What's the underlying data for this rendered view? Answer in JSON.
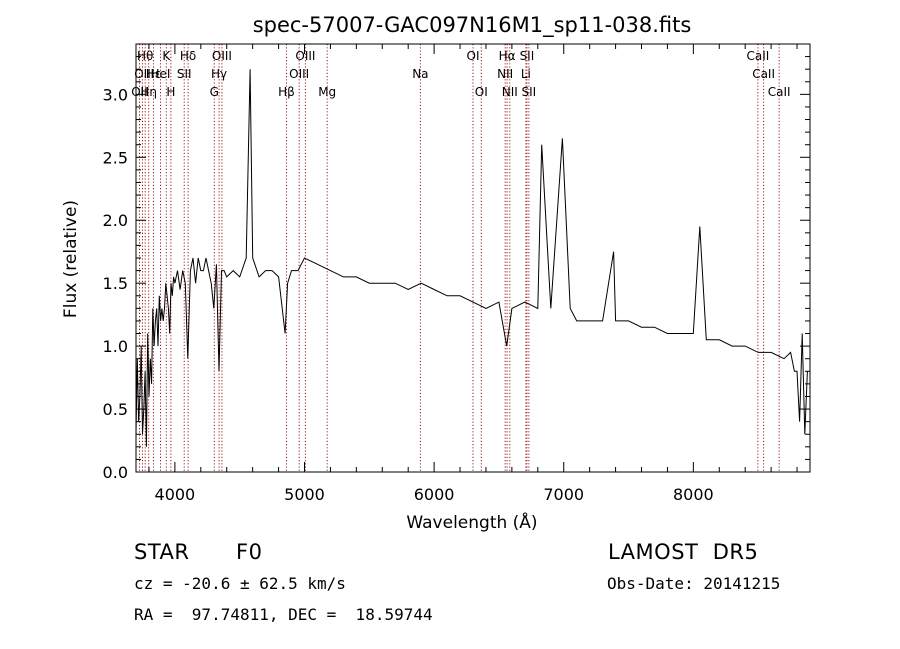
{
  "colors": {
    "spectrum": "#000000",
    "line_marker": "#a01818",
    "axes": "#000000",
    "background": "#ffffff"
  },
  "chart_data": {
    "type": "line",
    "title": "spec-57007-GAC097N16M1_sp11-038.fits",
    "xlabel": "Wavelength (Å)",
    "ylabel": "Flux (relative)",
    "xlim": [
      3700,
      8900
    ],
    "ylim": [
      0.0,
      3.4
    ],
    "x_ticks": [
      4000,
      5000,
      6000,
      7000,
      8000
    ],
    "y_ticks": [
      "0.0",
      "0.5",
      "1.0",
      "1.5",
      "2.0",
      "2.5",
      "3.0"
    ],
    "grid": false,
    "legend": "none",
    "series": [
      {
        "x": [
          3700,
          3710,
          3720,
          3730,
          3740,
          3750,
          3760,
          3770,
          3780,
          3790,
          3800,
          3810,
          3820,
          3830,
          3840,
          3850,
          3860,
          3870,
          3880,
          3890,
          3900,
          3910,
          3920,
          3930,
          3940,
          3950,
          3960,
          3970,
          3980,
          3990,
          4000,
          4020,
          4040,
          4060,
          4080,
          4100,
          4120,
          4140,
          4160,
          4180,
          4200,
          4220,
          4240,
          4260,
          4280,
          4300,
          4320,
          4340,
          4360,
          4380,
          4400,
          4450,
          4500,
          4550,
          4580,
          4600,
          4650,
          4700,
          4750,
          4800,
          4850,
          4870,
          4900,
          4950,
          5000,
          5100,
          5200,
          5300,
          5400,
          5500,
          5600,
          5700,
          5800,
          5900,
          6000,
          6100,
          6200,
          6300,
          6400,
          6500,
          6560,
          6600,
          6700,
          6800,
          6830,
          6900,
          6990,
          7050,
          7100,
          7200,
          7300,
          7385,
          7400,
          7500,
          7600,
          7700,
          7800,
          7900,
          8000,
          8050,
          8100,
          8200,
          8300,
          8400,
          8500,
          8600,
          8700,
          8750,
          8780,
          8800,
          8820,
          8840,
          8860,
          8880
        ],
        "y": [
          0.3,
          0.9,
          0.4,
          0.6,
          1.0,
          0.3,
          0.5,
          0.8,
          0.2,
          1.1,
          0.6,
          0.9,
          0.7,
          1.3,
          1.0,
          1.2,
          1.3,
          1.0,
          1.4,
          1.2,
          1.3,
          1.2,
          1.3,
          1.5,
          1.4,
          1.3,
          1.1,
          1.5,
          1.4,
          1.55,
          1.5,
          1.6,
          1.45,
          1.6,
          1.5,
          0.9,
          1.6,
          1.7,
          1.5,
          1.7,
          1.6,
          1.6,
          1.7,
          1.6,
          1.5,
          1.3,
          1.65,
          0.8,
          1.6,
          1.6,
          1.55,
          1.6,
          1.55,
          1.7,
          3.2,
          1.7,
          1.55,
          1.6,
          1.6,
          1.55,
          1.1,
          1.5,
          1.6,
          1.6,
          1.7,
          1.65,
          1.6,
          1.55,
          1.55,
          1.5,
          1.5,
          1.5,
          1.45,
          1.5,
          1.45,
          1.4,
          1.4,
          1.35,
          1.3,
          1.35,
          1.0,
          1.3,
          1.35,
          1.3,
          2.6,
          1.3,
          2.65,
          1.3,
          1.2,
          1.2,
          1.2,
          1.75,
          1.2,
          1.2,
          1.15,
          1.15,
          1.1,
          1.1,
          1.1,
          1.95,
          1.05,
          1.05,
          1.0,
          1.0,
          0.95,
          0.95,
          0.9,
          0.95,
          0.8,
          0.8,
          0.4,
          1.1,
          0.3,
          0.8
        ]
      }
    ],
    "line_markers": [
      {
        "x": 3727,
        "row": 2,
        "label": "OII"
      },
      {
        "x": 3750,
        "row": 1,
        "label": "OII"
      },
      {
        "x": 3771,
        "row": 0,
        "label": "Hθ"
      },
      {
        "x": 3798,
        "row": 2,
        "label": "Hη"
      },
      {
        "x": 3835,
        "row": 1,
        "label": "Hε"
      },
      {
        "x": 3889,
        "row": 1,
        "label": "HeI"
      },
      {
        "x": 3934,
        "row": 0,
        "label": "K"
      },
      {
        "x": 3969,
        "row": 2,
        "label": "H"
      },
      {
        "x": 4072,
        "row": 1,
        "label": "SII"
      },
      {
        "x": 4102,
        "row": 0,
        "label": "Hδ"
      },
      {
        "x": 4304,
        "row": 2,
        "label": "G"
      },
      {
        "x": 4341,
        "row": 1,
        "label": "Hγ"
      },
      {
        "x": 4363,
        "row": 0,
        "label": "OIII"
      },
      {
        "x": 4861,
        "row": 2,
        "label": "Hβ"
      },
      {
        "x": 4959,
        "row": 1,
        "label": "OIII"
      },
      {
        "x": 5007,
        "row": 0,
        "label": "OIII"
      },
      {
        "x": 5175,
        "row": 2,
        "label": "Mg"
      },
      {
        "x": 5894,
        "row": 1,
        "label": "Na"
      },
      {
        "x": 6300,
        "row": 0,
        "label": "OI"
      },
      {
        "x": 6364,
        "row": 2,
        "label": "OI"
      },
      {
        "x": 6548,
        "row": 1,
        "label": "NII"
      },
      {
        "x": 6563,
        "row": 0,
        "label": "Hα"
      },
      {
        "x": 6584,
        "row": 2,
        "label": "NII"
      },
      {
        "x": 6708,
        "row": 1,
        "label": "Li"
      },
      {
        "x": 6716,
        "row": 0,
        "label": "SII"
      },
      {
        "x": 6731,
        "row": 2,
        "label": "SII"
      },
      {
        "x": 8498,
        "row": 0,
        "label": "CaII"
      },
      {
        "x": 8542,
        "row": 1,
        "label": "CaII"
      },
      {
        "x": 8662,
        "row": 2,
        "label": "CaII"
      }
    ]
  },
  "info": {
    "class": "STAR",
    "subclass": "F0",
    "survey": "LAMOST  DR5",
    "cz": "cz = -20.6 ± 62.5 km/s",
    "obs_date": "Obs-Date: 20141215",
    "radec": "RA =  97.74811, DEC =  18.59744"
  }
}
